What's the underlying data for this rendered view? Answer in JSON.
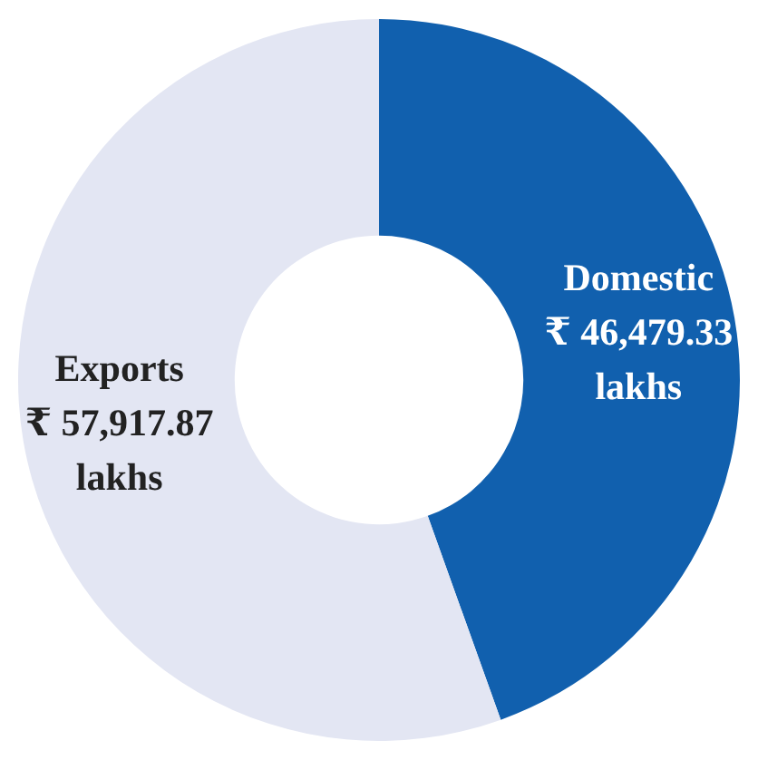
{
  "chart_data": {
    "type": "donut",
    "categories": [
      "Domestic",
      "Exports"
    ],
    "values": [
      46479.33,
      57917.87
    ],
    "colors": [
      "#1160ae",
      "#e3e6f3"
    ],
    "value_labels": [
      "₹ 46,479.33 lakhs",
      "₹ 57,917.87 lakhs"
    ],
    "legend": false
  }
}
